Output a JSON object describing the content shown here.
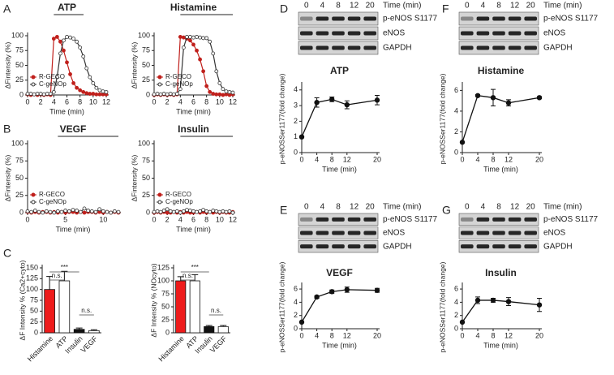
{
  "panel_labels": [
    "A",
    "B",
    "C",
    "D",
    "E",
    "F",
    "G"
  ],
  "chart_data": [
    {
      "type": "line",
      "title": "ATP",
      "xlabel": "Time (min)",
      "ylabel": "ΔFintensity (%)",
      "legend": "lower left",
      "xlim": [
        0,
        12
      ],
      "xticks": [
        0,
        2,
        4,
        6,
        8,
        10,
        12
      ],
      "ylim": [
        0,
        100
      ],
      "yticks": [
        0,
        25,
        50,
        75,
        100
      ],
      "x": [
        0,
        0.5,
        1,
        1.5,
        2,
        2.5,
        3,
        3.5,
        4,
        4.5,
        5,
        5.5,
        6,
        6.5,
        7,
        7.5,
        8,
        8.5,
        9,
        9.5,
        10,
        10.5,
        11,
        11.5,
        12
      ],
      "series": [
        {
          "name": "R-GECO",
          "color": "#c0201c",
          "marker": "filled",
          "values": [
            1,
            0,
            1,
            0,
            1,
            0,
            1,
            0,
            95,
            98,
            90,
            75,
            55,
            35,
            20,
            12,
            8,
            5,
            3,
            2,
            2,
            1,
            1,
            1,
            1
          ]
        },
        {
          "name": "C-geNOp",
          "color": "#333333",
          "marker": "open",
          "values": [
            2,
            2,
            1,
            2,
            2,
            1,
            2,
            2,
            5,
            30,
            70,
            92,
            98,
            97,
            95,
            90,
            80,
            65,
            45,
            30,
            20,
            12,
            8,
            6,
            5
          ]
        }
      ]
    },
    {
      "type": "line",
      "title": "Histamine",
      "xlabel": "Time (min)",
      "ylabel": "ΔFintensity (%)",
      "legend": "lower left",
      "xlim": [
        0,
        12
      ],
      "xticks": [
        0,
        2,
        4,
        6,
        8,
        10,
        12
      ],
      "ylim": [
        0,
        100
      ],
      "yticks": [
        0,
        25,
        50,
        75,
        100
      ],
      "x": [
        0,
        0.5,
        1,
        1.5,
        2,
        2.5,
        3,
        3.5,
        4,
        4.5,
        5,
        5.5,
        6,
        6.5,
        7,
        7.5,
        8,
        8.5,
        9,
        9.5,
        10,
        10.5,
        11,
        11.5,
        12
      ],
      "series": [
        {
          "name": "R-GECO",
          "color": "#c0201c",
          "marker": "filled",
          "values": [
            0,
            1,
            0,
            1,
            0,
            1,
            0,
            1,
            98,
            97,
            95,
            92,
            85,
            75,
            60,
            40,
            15,
            5,
            2,
            1,
            1,
            0,
            1,
            0,
            1
          ]
        },
        {
          "name": "C-geNOp",
          "color": "#333333",
          "marker": "open",
          "values": [
            1,
            2,
            1,
            2,
            1,
            2,
            1,
            2,
            10,
            80,
            98,
            98,
            97,
            98,
            97,
            96,
            96,
            90,
            70,
            40,
            20,
            10,
            6,
            5,
            4
          ]
        }
      ]
    },
    {
      "type": "line",
      "title": "VEGF",
      "xlabel": "Time (min)",
      "ylabel": "ΔFintensity (%)",
      "legend": "lower left",
      "xlim": [
        0,
        12
      ],
      "xticks": [
        0,
        5,
        10
      ],
      "ylim": [
        0,
        100
      ],
      "yticks": [
        0,
        25,
        50,
        75,
        100
      ],
      "x": [
        0,
        0.5,
        1,
        1.5,
        2,
        2.5,
        3,
        3.5,
        4,
        4.5,
        5,
        5.5,
        6,
        6.5,
        7,
        7.5,
        8,
        8.5,
        9,
        9.5,
        10,
        10.5,
        11,
        11.5,
        12
      ],
      "series": [
        {
          "name": "R-GECO",
          "color": "#c0201c",
          "marker": "filled",
          "values": [
            1,
            0,
            1,
            0,
            1,
            1,
            0,
            1,
            0,
            1,
            0,
            1,
            1,
            0,
            1,
            0,
            1,
            1,
            0,
            1,
            0,
            1,
            0,
            1,
            0
          ]
        },
        {
          "name": "C-geNOp",
          "color": "#333333",
          "marker": "open",
          "values": [
            2,
            1,
            3,
            1,
            0,
            2,
            1,
            0,
            2,
            1,
            3,
            2,
            4,
            3,
            1,
            6,
            3,
            2,
            1,
            5,
            2,
            1,
            0,
            2,
            1
          ]
        }
      ]
    },
    {
      "type": "line",
      "title": "Insulin",
      "xlabel": "Time (min)",
      "ylabel": "ΔFintensity (%)",
      "legend": "lower left",
      "xlim": [
        0,
        12
      ],
      "xticks": [
        0,
        2,
        4,
        6,
        8,
        10,
        12
      ],
      "ylim": [
        0,
        100
      ],
      "yticks": [
        0,
        25,
        50,
        75,
        100
      ],
      "x": [
        0,
        0.5,
        1,
        1.5,
        2,
        2.5,
        3,
        3.5,
        4,
        4.5,
        5,
        5.5,
        6,
        6.5,
        7,
        7.5,
        8,
        8.5,
        9,
        9.5,
        10,
        10.5,
        11,
        11.5,
        12
      ],
      "series": [
        {
          "name": "R-GECO",
          "color": "#c0201c",
          "marker": "filled",
          "values": [
            0,
            1,
            0,
            1,
            0,
            0,
            1,
            0,
            1,
            0,
            1,
            0,
            0,
            1,
            0,
            1,
            0,
            1,
            0,
            1,
            0,
            1,
            0,
            0,
            1
          ]
        },
        {
          "name": "C-geNOp",
          "color": "#333333",
          "marker": "open",
          "values": [
            1,
            2,
            1,
            3,
            5,
            2,
            1,
            2,
            0,
            2,
            4,
            3,
            2,
            1,
            2,
            4,
            2,
            1,
            3,
            2,
            1,
            2,
            1,
            2,
            0
          ]
        }
      ]
    },
    {
      "type": "bar",
      "ylabel": "ΔF Intensity % (Ca2+cyto)",
      "categories": [
        "Histamine",
        "ATP",
        "Insulin",
        "VEGF"
      ],
      "values": [
        100,
        120,
        8,
        5
      ],
      "errors": [
        30,
        22,
        3,
        2
      ],
      "colors": [
        "#ee1c1c",
        "#ffffff",
        "#111111",
        "#ffffff"
      ],
      "ylim": [
        0,
        150
      ],
      "yticks": [
        0,
        25,
        50,
        75,
        100,
        125,
        150
      ],
      "annotations": [
        "n.s.",
        "***",
        "n.s."
      ]
    },
    {
      "type": "bar",
      "ylabel": "ΔF Intensity % (NOcyto)",
      "categories": [
        "Histamine",
        "ATP",
        "Insulin",
        "VEGF"
      ],
      "values": [
        100,
        100,
        12,
        12
      ],
      "errors": [
        8,
        12,
        2,
        2
      ],
      "colors": [
        "#ee1c1c",
        "#ffffff",
        "#111111",
        "#ffffff"
      ],
      "ylim": [
        0,
        125
      ],
      "yticks": [
        0,
        25,
        50,
        75,
        100,
        125
      ],
      "annotations": [
        "n.s.",
        "***",
        "n.s."
      ]
    },
    {
      "type": "line",
      "title": "ATP",
      "xlabel": "Time (min)",
      "ylabel": "p-eNOSSer1177(fold change)",
      "xlim": [
        0,
        20
      ],
      "xticks": [
        0,
        4,
        8,
        12,
        20
      ],
      "ylim": [
        0,
        4.3
      ],
      "yticks": [
        0,
        1,
        2,
        3,
        4
      ],
      "x": [
        0,
        4,
        8,
        12,
        20
      ],
      "values": [
        1,
        3.2,
        3.4,
        3.05,
        3.35
      ],
      "errors": [
        0.05,
        0.3,
        0.15,
        0.25,
        0.3
      ],
      "color": "#111111",
      "blot": {
        "lanes_label": "Time (min)",
        "lanes": [
          "0",
          "4",
          "8",
          "12",
          "20"
        ],
        "bands": [
          "p-eNOS S1177",
          "eNOS",
          "GAPDH"
        ]
      }
    },
    {
      "type": "line",
      "title": "VEGF",
      "xlabel": "Time (min)",
      "ylabel": "p-eNOSSer1177(fold change)",
      "xlim": [
        0,
        20
      ],
      "xticks": [
        0,
        4,
        8,
        12,
        20
      ],
      "ylim": [
        0,
        6.5
      ],
      "yticks": [
        0,
        2,
        4,
        6
      ],
      "x": [
        0,
        4,
        8,
        12,
        20
      ],
      "values": [
        1,
        4.8,
        5.6,
        5.9,
        5.8
      ],
      "errors": [
        0.1,
        0.2,
        0.25,
        0.4,
        0.3
      ],
      "color": "#111111",
      "blot": {
        "lanes_label": "Time (min)",
        "lanes": [
          "0",
          "4",
          "8",
          "12",
          "20"
        ],
        "bands": [
          "p-eNOS S1177",
          "eNOS",
          "GAPDH"
        ]
      }
    },
    {
      "type": "line",
      "title": "Histamine",
      "xlabel": "Time (min)",
      "ylabel": "p-eNOSSer1177(fold change)",
      "xlim": [
        0,
        20
      ],
      "xticks": [
        0,
        4,
        8,
        12,
        20
      ],
      "ylim": [
        0,
        6.5
      ],
      "yticks": [
        0,
        2,
        4,
        6
      ],
      "x": [
        0,
        4,
        8,
        12,
        20
      ],
      "values": [
        1,
        5.5,
        5.3,
        4.8,
        5.3
      ],
      "errors": [
        0.05,
        0.1,
        0.8,
        0.3,
        0.1
      ],
      "color": "#111111",
      "blot": {
        "lanes_label": "Time (min)",
        "lanes": [
          "0",
          "4",
          "8",
          "12",
          "20"
        ],
        "bands": [
          "p-eNOS S1177",
          "eNOS",
          "GAPDH"
        ]
      }
    },
    {
      "type": "line",
      "title": "Insulin",
      "xlabel": "Time (min)",
      "ylabel": "p-eNOSSer1177(fold change)",
      "xlim": [
        0,
        20
      ],
      "xticks": [
        0,
        4,
        8,
        12,
        20
      ],
      "ylim": [
        0,
        6.5
      ],
      "yticks": [
        0,
        2,
        4,
        6
      ],
      "x": [
        0,
        4,
        8,
        12,
        20
      ],
      "values": [
        1,
        4.3,
        4.3,
        4.1,
        3.6
      ],
      "errors": [
        0.05,
        0.5,
        0.3,
        0.6,
        1.0
      ],
      "color": "#111111",
      "blot": {
        "lanes_label": "Time (min)",
        "lanes": [
          "0",
          "4",
          "8",
          "12",
          "20"
        ],
        "bands": [
          "p-eNOS S1177",
          "eNOS",
          "GAPDH"
        ]
      }
    }
  ]
}
